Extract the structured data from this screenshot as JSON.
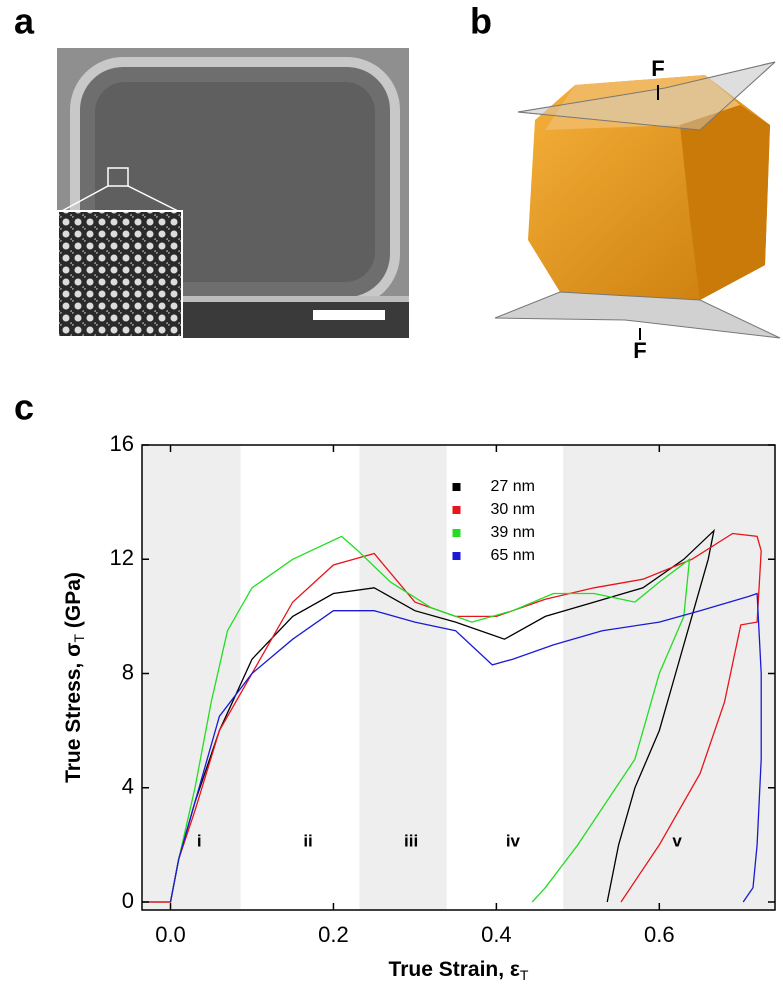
{
  "panel_labels": [
    "a",
    "b",
    "c"
  ],
  "force_labels": [
    "F",
    "F"
  ],
  "chart_data": {
    "type": "line",
    "x_label": {
      "text": "True Strain, ε",
      "subscript": "T"
    },
    "y_label": {
      "text": "True Stress, σ",
      "subscript": "T",
      "suffix": " (GPa)"
    },
    "xlim": [
      -0.035,
      0.742
    ],
    "ylim": [
      -0.28,
      16
    ],
    "xticks": [
      {
        "value": 0,
        "label": "0.0"
      },
      0.2,
      0.4,
      0.6
    ],
    "yticks": [
      0,
      4,
      8,
      12,
      16
    ],
    "legend": "upper center",
    "regions": [
      {
        "label": "i",
        "start": -0.035,
        "end": 0.086,
        "shaded": true
      },
      {
        "label": "ii",
        "start": 0.086,
        "end": 0.232,
        "shaded": false
      },
      {
        "label": "iii",
        "start": 0.232,
        "end": 0.339,
        "shaded": true
      },
      {
        "label": "iv",
        "start": 0.339,
        "end": 0.482,
        "shaded": false
      },
      {
        "label": "v",
        "start": 0.482,
        "end": 0.742,
        "shaded": true
      }
    ],
    "series": [
      {
        "name": "27 nm",
        "color": "#000000",
        "x": [
          -0.035,
          0,
          0.01,
          0.03,
          0.06,
          0.1,
          0.15,
          0.2,
          0.25,
          0.3,
          0.35,
          0.41,
          0.46,
          0.52,
          0.58,
          0.63,
          0.667,
          0.66,
          0.64,
          0.62,
          0.6,
          0.57,
          0.55,
          0.536
        ],
        "values": [
          0,
          0,
          1.5,
          3.5,
          6,
          8.5,
          10,
          10.8,
          11,
          10.2,
          9.8,
          9.2,
          10,
          10.5,
          11,
          12,
          13,
          12,
          10,
          8,
          6,
          4,
          2,
          0
        ]
      },
      {
        "name": "30 nm",
        "color": "#e8141b",
        "x": [
          -0.035,
          0,
          0.01,
          0.03,
          0.06,
          0.1,
          0.15,
          0.2,
          0.25,
          0.3,
          0.35,
          0.4,
          0.46,
          0.52,
          0.58,
          0.64,
          0.69,
          0.72,
          0.725,
          0.72,
          0.7,
          0.68,
          0.65,
          0.6,
          0.553
        ],
        "values": [
          0,
          0,
          1.5,
          3.2,
          6,
          8,
          10.5,
          11.8,
          12.2,
          10.5,
          10,
          10,
          10.6,
          11,
          11.3,
          12,
          12.9,
          12.8,
          12.3,
          9.8,
          9.7,
          7,
          4.5,
          2,
          0
        ]
      },
      {
        "name": "39 nm",
        "color": "#22dd22",
        "x": [
          0,
          0.01,
          0.03,
          0.05,
          0.07,
          0.1,
          0.15,
          0.21,
          0.23,
          0.27,
          0.32,
          0.37,
          0.42,
          0.47,
          0.52,
          0.57,
          0.6,
          0.637,
          0.63,
          0.6,
          0.57,
          0.5,
          0.46,
          0.444
        ],
        "values": [
          0,
          1.5,
          4,
          7,
          9.5,
          11,
          12,
          12.8,
          12.3,
          11.2,
          10.3,
          9.8,
          10.2,
          10.8,
          10.8,
          10.5,
          11.2,
          12,
          10,
          8,
          5,
          2,
          0.5,
          0
        ]
      },
      {
        "name": "65 nm",
        "color": "#1a1ad6",
        "x": [
          0,
          0.01,
          0.03,
          0.06,
          0.1,
          0.15,
          0.2,
          0.25,
          0.3,
          0.35,
          0.395,
          0.42,
          0.47,
          0.53,
          0.6,
          0.65,
          0.71,
          0.72,
          0.725,
          0.725,
          0.72,
          0.715,
          0.703
        ],
        "values": [
          0,
          1.5,
          3.5,
          6.5,
          8,
          9.2,
          10.2,
          10.2,
          9.8,
          9.5,
          8.3,
          8.5,
          9,
          9.5,
          9.8,
          10.2,
          10.7,
          10.8,
          8,
          5,
          2,
          0.5,
          0
        ]
      }
    ]
  }
}
